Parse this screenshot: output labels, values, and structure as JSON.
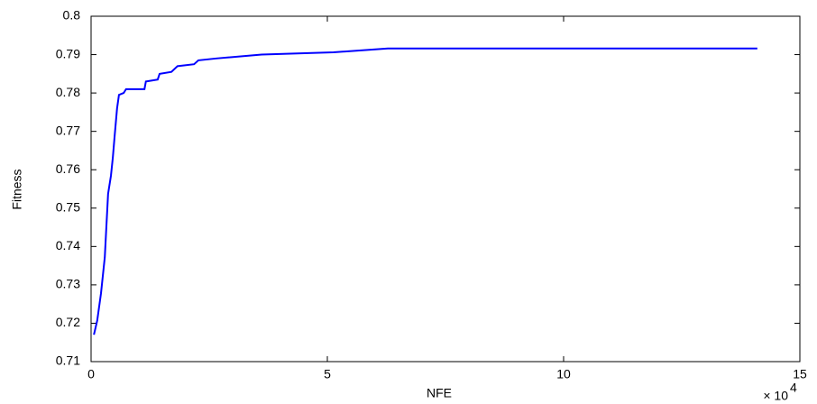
{
  "chart_data": {
    "type": "line",
    "x_label": "NFE",
    "y_label": "Fitness",
    "x_scale_label": "× 10",
    "x_scale_exponent": "4",
    "xlim": [
      0,
      15
    ],
    "xticks": [
      0,
      5,
      10,
      15
    ],
    "ylim": [
      0.71,
      0.8
    ],
    "yticks": [
      0.71,
      0.72,
      0.73,
      0.74,
      0.75,
      0.76,
      0.77,
      0.78,
      0.79,
      0.8
    ],
    "grid": false,
    "x": [
      0.06,
      0.13,
      0.21,
      0.29,
      0.32,
      0.36,
      0.42,
      0.46,
      0.5,
      0.55,
      0.59,
      0.69,
      0.74,
      1.13,
      1.16,
      1.41,
      1.45,
      1.7,
      1.83,
      2.18,
      2.27,
      2.65,
      3.61,
      5.13,
      6.28,
      14.1
    ],
    "series": [
      {
        "name": "Fitness",
        "color": "#0000ff",
        "values": [
          0.717,
          0.7207,
          0.7278,
          0.7372,
          0.7443,
          0.7537,
          0.7584,
          0.7631,
          0.769,
          0.776,
          0.7795,
          0.78,
          0.781,
          0.781,
          0.783,
          0.7835,
          0.785,
          0.7855,
          0.787,
          0.7875,
          0.7885,
          0.789,
          0.79,
          0.7906,
          0.7916,
          0.7916
        ]
      }
    ]
  }
}
